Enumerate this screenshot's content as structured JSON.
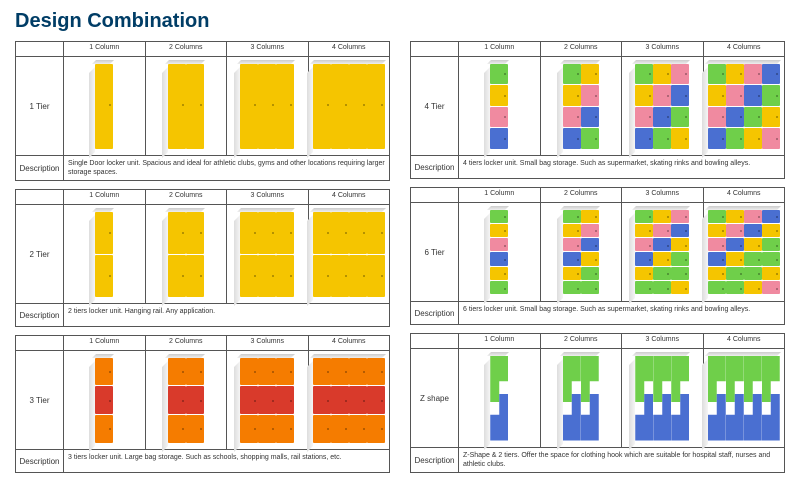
{
  "title": "Design Combination",
  "columns_headers": [
    "1 Column",
    "2 Columns",
    "3 Columns",
    "4 Columns"
  ],
  "desc_label": "Description",
  "tiers": [
    {
      "label": "1 Tier",
      "desc": "Single Door locker unit. Spacious and ideal for athletic clubs, gyms and other locations requiring larger storage spaces.",
      "rows": 1,
      "palette_type": "solid",
      "colors": [
        [
          "#f5c500"
        ]
      ]
    },
    {
      "label": "2 Tier",
      "desc": "2 tiers locker unit. Hanging rail. Any application.",
      "rows": 2,
      "palette_type": "solid",
      "colors": [
        [
          "#f5c500"
        ],
        [
          "#f5c500"
        ]
      ]
    },
    {
      "label": "3 Tier",
      "desc": "3 tiers locker unit. Large bag storage. Such as schools, shopping malls, rail stations, etc.",
      "rows": 3,
      "palette_type": "rows",
      "row_colors": [
        "#f57c00",
        "#d93a2b",
        "#f57c00"
      ]
    },
    {
      "label": "4 Tier",
      "desc": "4 tiers locker unit. Small bag storage. Such as supermarket, skating rinks and bowling alleys.",
      "rows": 4,
      "palette_type": "mixed",
      "cell_colors": [
        "#6fcf4a",
        "#f5c500",
        "#f08aa0",
        "#4a6fd1"
      ]
    },
    {
      "label": "6 Tier",
      "desc": "6 tiers locker unit. Small bag storage. Such as supermarket, skating rinks and bowling alleys.",
      "rows": 6,
      "palette_type": "mixed",
      "cell_colors": [
        "#6fcf4a",
        "#f5c500",
        "#f08aa0",
        "#4a6fd1",
        "#f5c500",
        "#6fcf4a"
      ]
    },
    {
      "label": "Z shape",
      "desc": "Z-Shape & 2 tiers. Offer the space for clothing hook which are suitable for hospital staff, nurses and athletic clubs.",
      "rows": 0,
      "palette_type": "zshape",
      "z_colors": [
        "#6fcf4a",
        "#4a6fd1"
      ]
    }
  ],
  "styling": {
    "title_color": "#003d66",
    "border_color": "#555555",
    "background": "#ffffff",
    "font_size_title": 20,
    "font_size_header": 7,
    "font_size_label": 8,
    "font_size_desc": 7
  }
}
